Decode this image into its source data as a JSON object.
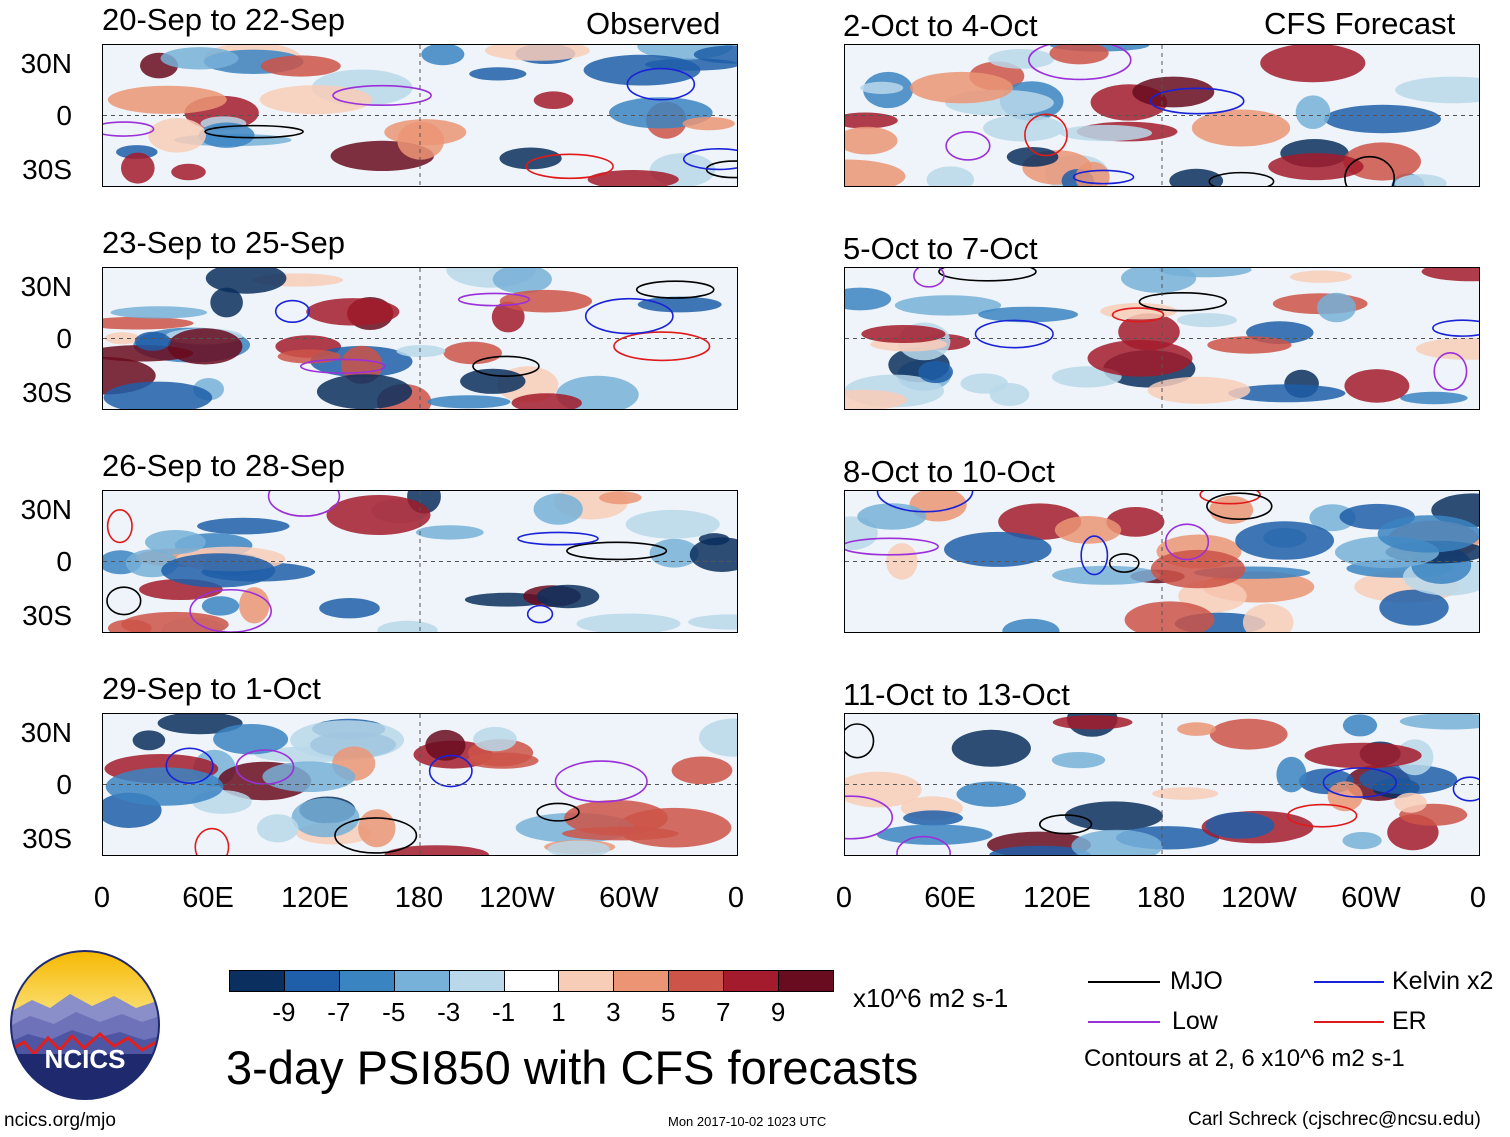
{
  "figure_title": "3-day PSI850 with CFS forecasts",
  "column_headers": {
    "observed": "Observed",
    "forecast": "CFS Forecast"
  },
  "footer": {
    "url": "ncics.org/mjo",
    "timestamp": "Mon 2017-10-02 1023 UTC",
    "author": "Carl Schreck (cjschrec@ncsu.edu)",
    "logo_text": "NCICS"
  },
  "colorbar": {
    "units": "x10^6 m2 s-1",
    "tick_labels": [
      "-9",
      "-7",
      "-5",
      "-3",
      "-1",
      "1",
      "3",
      "5",
      "7",
      "9"
    ],
    "colors": [
      "#0b2f5e",
      "#1f5ea8",
      "#3b84c2",
      "#77b0d8",
      "#b9d8ea",
      "#ffffff",
      "#f8cdb8",
      "#eb9575",
      "#cd5448",
      "#a31b2c",
      "#6a0c1f"
    ]
  },
  "legend": {
    "items": [
      {
        "label": "MJO",
        "color": "#000000"
      },
      {
        "label": "Kelvin x2",
        "color": "#1a22d8"
      },
      {
        "label": "Low",
        "color": "#9b30d9"
      },
      {
        "label": "ER",
        "color": "#e01a1a"
      }
    ],
    "contour_note": "Contours at 2, 6 x10^6 m2 s-1"
  },
  "chart_data": {
    "type": "heatmap",
    "variable": "PSI850 anomaly",
    "units": "x10^6 m2 s-1",
    "y_tick_labels": [
      "30N",
      "0",
      "30S"
    ],
    "x_tick_labels": [
      "0",
      "60E",
      "120E",
      "180",
      "120W",
      "60W",
      "0"
    ],
    "lon_range": [
      0,
      360
    ],
    "lat_range": [
      -40,
      40
    ],
    "panels": [
      {
        "title": "20-Sep to 22-Sep",
        "kind": "Observed"
      },
      {
        "title": "23-Sep to 25-Sep",
        "kind": "Observed"
      },
      {
        "title": "26-Sep to 28-Sep",
        "kind": "Observed"
      },
      {
        "title": "29-Sep to 1-Oct",
        "kind": "Observed"
      },
      {
        "title": "2-Oct to 4-Oct",
        "kind": "CFS Forecast"
      },
      {
        "title": "5-Oct to 7-Oct",
        "kind": "CFS Forecast"
      },
      {
        "title": "8-Oct to 10-Oct",
        "kind": "CFS Forecast"
      },
      {
        "title": "11-Oct to 13-Oct",
        "kind": "CFS Forecast"
      }
    ]
  }
}
